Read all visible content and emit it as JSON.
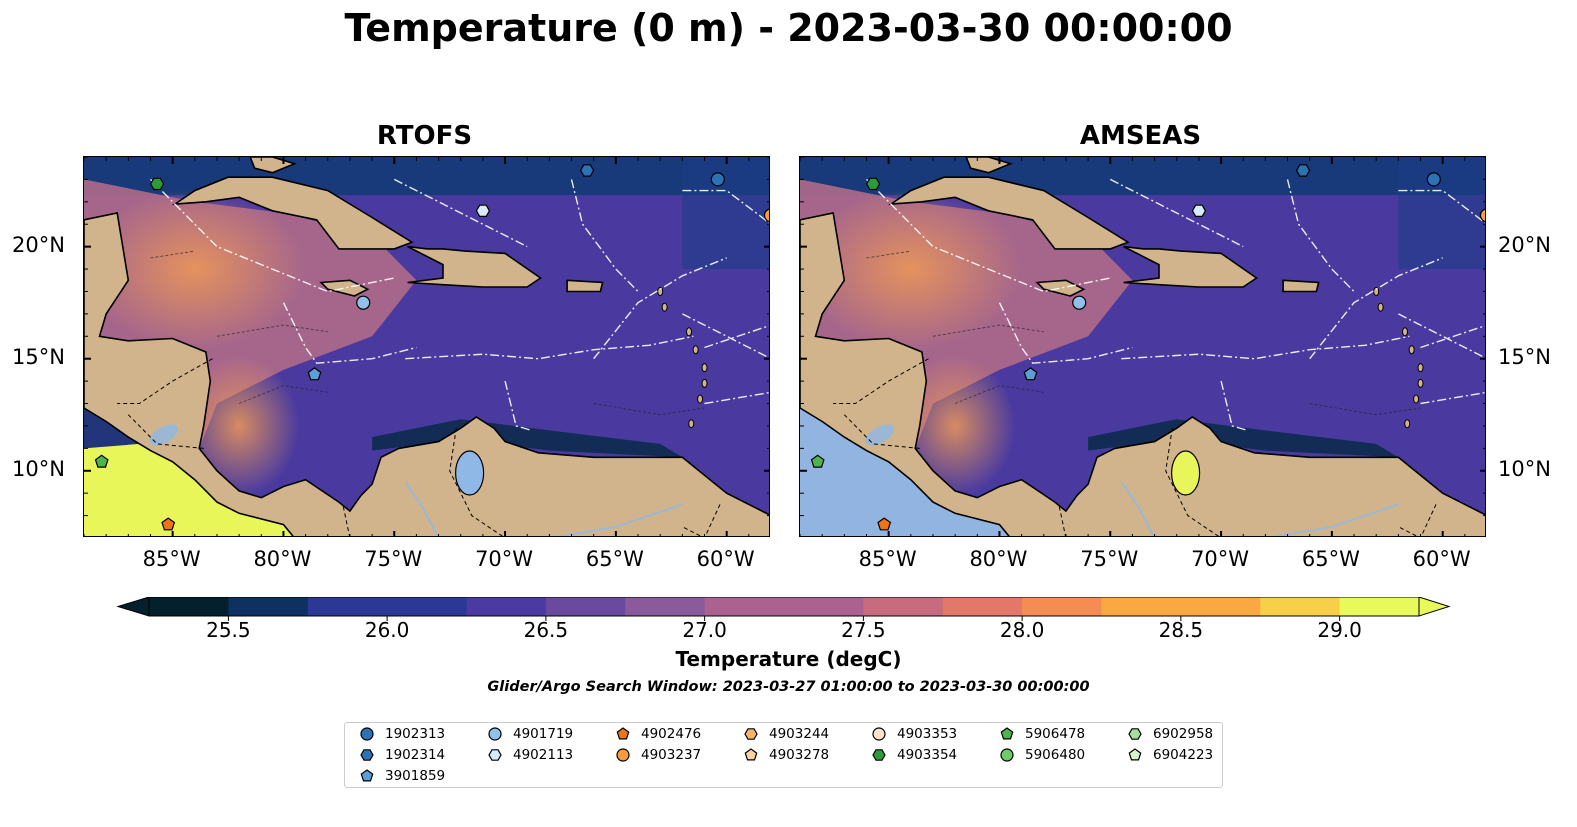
{
  "title": "Temperature (0 m) - 2023-03-30 00:00:00",
  "panels": [
    {
      "name": "RTOFS"
    },
    {
      "name": "AMSEAS"
    }
  ],
  "axes": {
    "x_ticks": [
      "85°W",
      "80°W",
      "75°W",
      "70°W",
      "65°W",
      "60°W"
    ],
    "y_ticks": [
      "20°N",
      "15°N",
      "10°N"
    ],
    "lon_range": [
      -89,
      -58
    ],
    "lat_range": [
      7,
      24
    ]
  },
  "colorbar": {
    "label": "Temperature (degC)",
    "ticks": [
      "25.5",
      "26.0",
      "26.5",
      "27.0",
      "27.5",
      "28.0",
      "28.5",
      "29.0"
    ],
    "range": [
      25.25,
      29.25
    ],
    "colormap": "thermal",
    "extend": "both"
  },
  "search_window": "Glider/Argo Search Window: 2023-03-27 01:00:00 to 2023-03-30 00:00:00",
  "legend": {
    "items": [
      {
        "id": "1902313",
        "marker": "circle",
        "color": "#2b73b5"
      },
      {
        "id": "1902314",
        "marker": "hexagon",
        "color": "#2b73b5"
      },
      {
        "id": "3901859",
        "marker": "pentagon",
        "color": "#5a9fd6"
      },
      {
        "id": "4901719",
        "marker": "circle",
        "color": "#8fc1ea"
      },
      {
        "id": "4902113",
        "marker": "hexagon",
        "color": "#d7ebfb"
      },
      {
        "id": "4902476",
        "marker": "pentagon",
        "color": "#ee7418"
      },
      {
        "id": "4903237",
        "marker": "circle",
        "color": "#fb9c3c"
      },
      {
        "id": "4903244",
        "marker": "hexagon",
        "color": "#fbb46c"
      },
      {
        "id": "4903278",
        "marker": "pentagon",
        "color": "#fcd2a4"
      },
      {
        "id": "4903353",
        "marker": "circle",
        "color": "#fde3cd"
      },
      {
        "id": "4903354",
        "marker": "hexagon",
        "color": "#2a9c3c"
      },
      {
        "id": "5906478",
        "marker": "pentagon",
        "color": "#4eb54e"
      },
      {
        "id": "5906480",
        "marker": "circle",
        "color": "#6fcb68"
      },
      {
        "id": "6902958",
        "marker": "hexagon",
        "color": "#a3e19c"
      },
      {
        "id": "6904223",
        "marker": "pentagon",
        "color": "#d8f4cf"
      }
    ]
  },
  "floats_on_map": [
    {
      "id": "1902313",
      "lon": -60.4,
      "lat": 23.0
    },
    {
      "id": "1902314",
      "lon": -66.3,
      "lat": 23.4
    },
    {
      "id": "4901719",
      "lon": -76.4,
      "lat": 17.5
    },
    {
      "id": "4902113",
      "lon": -71.0,
      "lat": 21.6
    },
    {
      "id": "3901859",
      "lon": -78.6,
      "lat": 14.3
    },
    {
      "id": "4903354",
      "lon": -85.7,
      "lat": 22.8
    },
    {
      "id": "5906478",
      "lon": -88.2,
      "lat": 10.4
    },
    {
      "id": "4902476",
      "lon": -85.2,
      "lat": 7.6
    },
    {
      "id": "4903237",
      "lon": -58.0,
      "lat": 21.4
    }
  ],
  "colors": {
    "land": "#d2b48c",
    "pacific_amseas": "#92b4e0",
    "lake": "#9ab8d6"
  }
}
